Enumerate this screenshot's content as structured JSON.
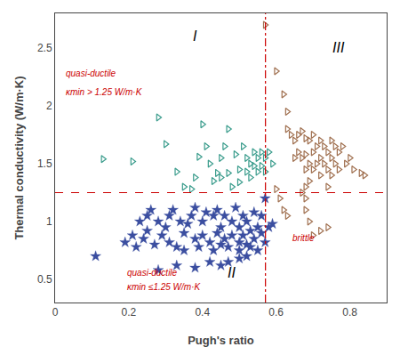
{
  "chart_data": {
    "type": "scatter",
    "xlabel": "Pugh's ratio",
    "ylabel": "Thermal conductivity (W/m·K)",
    "xlim": [
      0.0,
      0.9
    ],
    "ylim": [
      0.3,
      2.8
    ],
    "xticks": [
      0.0,
      0.2,
      0.4,
      0.6,
      0.8
    ],
    "yticks": [
      0.5,
      1.0,
      1.5,
      2.0,
      2.5
    ],
    "grid": false,
    "series": [
      {
        "color": "#3a9c8c",
        "marker": "triangle-right-open",
        "x": [
          0.13,
          0.21,
          0.28,
          0.3,
          0.33,
          0.35,
          0.37,
          0.38,
          0.39,
          0.4,
          0.41,
          0.42,
          0.43,
          0.44,
          0.45,
          0.45,
          0.46,
          0.47,
          0.47,
          0.48,
          0.49,
          0.5,
          0.5,
          0.51,
          0.52,
          0.52,
          0.53,
          0.53,
          0.54,
          0.54,
          0.55,
          0.55,
          0.56,
          0.56,
          0.57,
          0.57,
          0.58,
          0.59
        ],
        "values": [
          1.54,
          1.52,
          1.9,
          1.67,
          1.43,
          1.3,
          1.28,
          1.38,
          1.56,
          1.84,
          1.65,
          1.5,
          1.35,
          1.42,
          1.55,
          1.38,
          1.65,
          1.8,
          1.42,
          1.3,
          1.58,
          1.45,
          1.34,
          1.65,
          1.55,
          1.43,
          1.5,
          1.38,
          1.6,
          1.48,
          1.55,
          1.43,
          1.6,
          1.48,
          1.55,
          1.43,
          1.6,
          1.5
        ]
      },
      {
        "color": "#3b4ea0",
        "marker": "star",
        "x": [
          0.11,
          0.19,
          0.21,
          0.22,
          0.23,
          0.24,
          0.25,
          0.25,
          0.26,
          0.27,
          0.28,
          0.29,
          0.3,
          0.31,
          0.31,
          0.32,
          0.33,
          0.34,
          0.35,
          0.35,
          0.36,
          0.37,
          0.38,
          0.38,
          0.39,
          0.4,
          0.4,
          0.41,
          0.42,
          0.43,
          0.43,
          0.44,
          0.44,
          0.45,
          0.45,
          0.46,
          0.46,
          0.47,
          0.48,
          0.48,
          0.49,
          0.5,
          0.5,
          0.5,
          0.51,
          0.51,
          0.52,
          0.52,
          0.53,
          0.53,
          0.54,
          0.54,
          0.55,
          0.55,
          0.56,
          0.56,
          0.57,
          0.57,
          0.58,
          0.59,
          0.38,
          0.42,
          0.45,
          0.5,
          0.28,
          0.33,
          0.47,
          0.52
        ],
        "values": [
          0.7,
          0.82,
          0.88,
          0.78,
          1.0,
          0.85,
          1.05,
          0.92,
          1.1,
          0.8,
          1.0,
          0.88,
          0.95,
          1.05,
          0.82,
          1.1,
          0.78,
          1.0,
          0.9,
          0.75,
          0.98,
          1.05,
          0.85,
          1.12,
          0.78,
          1.0,
          0.88,
          1.08,
          0.82,
          1.05,
          0.75,
          0.9,
          1.1,
          0.8,
          0.95,
          1.05,
          0.85,
          0.78,
          1.0,
          0.88,
          1.12,
          0.82,
          0.95,
          0.75,
          1.05,
          0.88,
          0.8,
          1.0,
          0.92,
          0.78,
          1.08,
          0.85,
          0.95,
          0.75,
          0.9,
          1.05,
          0.82,
          1.2,
          0.95,
          0.98,
          0.6,
          0.65,
          0.62,
          0.68,
          0.58,
          0.62,
          0.65,
          0.7
        ]
      },
      {
        "color": "#a07050",
        "marker": "triangle-right-open",
        "x": [
          0.57,
          0.6,
          0.62,
          0.63,
          0.63,
          0.64,
          0.65,
          0.65,
          0.66,
          0.66,
          0.67,
          0.67,
          0.68,
          0.68,
          0.68,
          0.68,
          0.69,
          0.69,
          0.69,
          0.7,
          0.7,
          0.7,
          0.71,
          0.71,
          0.72,
          0.72,
          0.72,
          0.73,
          0.73,
          0.74,
          0.74,
          0.74,
          0.75,
          0.75,
          0.75,
          0.76,
          0.76,
          0.77,
          0.77,
          0.78,
          0.79,
          0.8,
          0.81,
          0.83,
          0.84,
          0.67,
          0.68,
          0.68,
          0.69,
          0.7,
          0.72,
          0.74,
          0.6,
          0.61,
          0.62,
          0.63
        ],
        "values": [
          2.7,
          2.3,
          2.1,
          1.95,
          1.8,
          1.75,
          1.7,
          1.55,
          1.75,
          1.6,
          1.78,
          1.55,
          1.72,
          1.58,
          1.45,
          1.3,
          1.7,
          1.5,
          1.35,
          1.75,
          1.6,
          1.45,
          1.65,
          1.5,
          1.7,
          1.55,
          1.4,
          1.65,
          1.5,
          1.6,
          1.45,
          1.3,
          1.7,
          1.55,
          1.4,
          1.65,
          1.5,
          1.6,
          1.45,
          1.65,
          1.5,
          1.55,
          1.45,
          1.42,
          1.4,
          1.25,
          1.2,
          1.1,
          1.0,
          0.88,
          0.92,
          0.95,
          1.28,
          1.2,
          1.1,
          1.05
        ]
      }
    ],
    "hlines": [
      {
        "y": 1.25,
        "color": "#cc0000",
        "line_style": "dash"
      }
    ],
    "vlines": [
      {
        "x": 0.571,
        "color": "#cc0000",
        "line_style": "dashdot"
      }
    ],
    "region_labels": [
      {
        "text": "I",
        "x": 0.38,
        "y": 2.52,
        "color": "#000000"
      },
      {
        "text": "II",
        "x": 0.48,
        "y": 0.48,
        "color": "#000000"
      },
      {
        "text": "III",
        "x": 0.77,
        "y": 2.42,
        "color": "#000000"
      }
    ],
    "annotations": [
      {
        "text": "quasi-ductile",
        "x": 0.025,
        "y": 2.22,
        "color": "#cc0000"
      },
      {
        "text": "κmin > 1.25 W/m·K",
        "x": 0.025,
        "y": 2.06,
        "color": "#cc0000"
      },
      {
        "text": "quasi-ductile",
        "x": 0.19,
        "y": 0.5,
        "color": "#cc0000"
      },
      {
        "text": "κmin ≤1.25 W/m·K",
        "x": 0.19,
        "y": 0.38,
        "color": "#cc0000"
      },
      {
        "text": "brittle",
        "x": 0.64,
        "y": 0.8,
        "color": "#cc0000"
      }
    ]
  }
}
